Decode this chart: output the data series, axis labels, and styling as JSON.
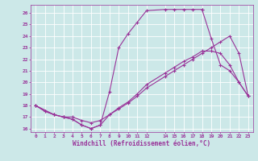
{
  "background_color": "#cce8e8",
  "line_color": "#993399",
  "xlabel": "Windchill (Refroidissement éolien,°C)",
  "xlim": [
    -0.5,
    23.5
  ],
  "ylim": [
    15.7,
    26.7
  ],
  "yticks": [
    16,
    17,
    18,
    19,
    20,
    21,
    22,
    23,
    24,
    25,
    26
  ],
  "xticks": [
    0,
    1,
    2,
    3,
    4,
    5,
    6,
    7,
    8,
    9,
    10,
    11,
    12,
    14,
    15,
    16,
    17,
    18,
    19,
    20,
    21,
    22,
    23
  ],
  "line1_x": [
    0,
    1,
    2,
    3,
    4,
    5,
    6,
    7,
    8,
    9,
    10,
    11,
    12,
    14,
    15,
    16,
    17,
    18,
    19,
    20,
    21,
    22,
    23
  ],
  "line1_y": [
    18.0,
    17.5,
    17.2,
    17.0,
    16.8,
    16.3,
    16.0,
    16.3,
    17.2,
    17.8,
    18.3,
    19.0,
    19.8,
    20.8,
    21.3,
    21.8,
    22.2,
    22.7,
    22.7,
    22.5,
    21.5,
    20.0,
    18.8
  ],
  "line2_x": [
    0,
    1,
    2,
    3,
    4,
    5,
    6,
    7,
    8,
    9,
    10,
    11,
    12,
    14,
    15,
    16,
    17,
    18
  ],
  "line2_y": [
    18.0,
    17.5,
    17.2,
    17.0,
    16.8,
    16.3,
    16.0,
    16.3,
    19.2,
    23.0,
    24.2,
    25.2,
    26.2,
    26.3,
    26.3,
    26.3,
    26.3,
    26.3
  ],
  "line2b_x": [
    18,
    19,
    20,
    21,
    22,
    23
  ],
  "line2b_y": [
    26.3,
    23.8,
    21.5,
    21.0,
    20.0,
    18.8
  ],
  "line3_x": [
    0,
    2,
    3,
    4,
    5,
    6,
    7,
    8,
    9,
    10,
    11,
    12,
    14,
    15,
    16,
    17,
    18,
    19,
    20,
    21,
    22,
    23
  ],
  "line3_y": [
    18.0,
    17.2,
    17.0,
    17.0,
    16.7,
    16.5,
    16.7,
    17.2,
    17.7,
    18.2,
    18.8,
    19.5,
    20.5,
    21.0,
    21.5,
    22.0,
    22.5,
    23.0,
    23.5,
    24.0,
    22.5,
    18.8
  ]
}
